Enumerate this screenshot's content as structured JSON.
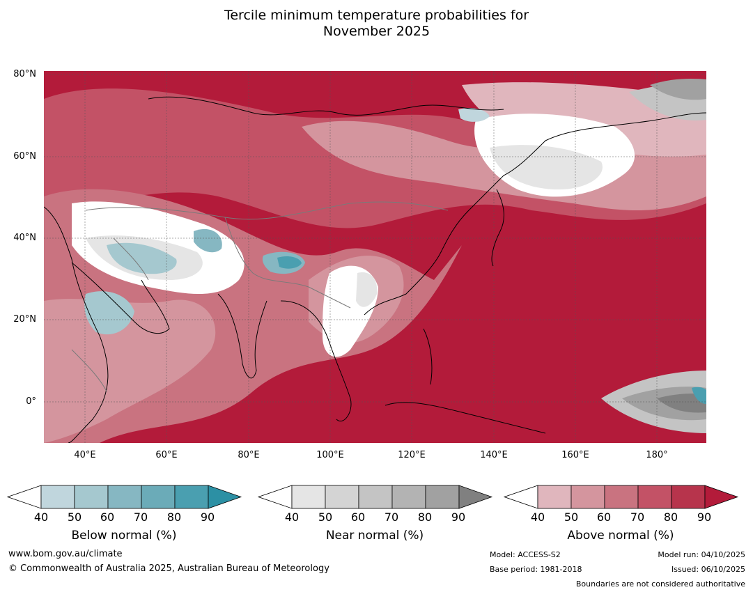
{
  "title_line1": "Tercile minimum temperature probabilities for",
  "title_line2": "November 2025",
  "map": {
    "lat_labels": [
      "80°N",
      "60°N",
      "40°N",
      "20°N",
      "0°"
    ],
    "lon_labels": [
      "40°E",
      "60°E",
      "80°E",
      "100°E",
      "120°E",
      "140°E",
      "160°E",
      "180°"
    ],
    "colors": {
      "above_dominant": "#b31b3a",
      "ocean_above": "#b31b3a"
    }
  },
  "legend": {
    "ticks": [
      "40",
      "50",
      "60",
      "70",
      "80",
      "90"
    ],
    "below": {
      "title": "Below normal (%)",
      "colors": [
        "#ffffff",
        "#c0d6dd",
        "#a5c8cf",
        "#86b7c2",
        "#6babb8",
        "#4a9fb0",
        "#2c90a4"
      ]
    },
    "near": {
      "title": "Near normal (%)",
      "colors": [
        "#ffffff",
        "#e5e5e5",
        "#d4d4d4",
        "#c4c4c4",
        "#b3b3b3",
        "#a1a1a1",
        "#808080"
      ]
    },
    "above": {
      "title": "Above normal (%)",
      "colors": [
        "#ffffff",
        "#e0b6bd",
        "#d4959e",
        "#c97380",
        "#c35266",
        "#b7344c",
        "#b31b3a"
      ]
    }
  },
  "footer": {
    "website": "www.bom.gov.au/climate",
    "copyright": "© Commonwealth of Australia 2025, Australian Bureau of Meteorology",
    "model": "Model: ACCESS-S2",
    "base_period": "Base period: 1981-2018",
    "model_run": "Model run: 04/10/2025",
    "issued": "Issued: 06/10/2025",
    "disclaimer": "Boundaries are not considered authoritative"
  }
}
